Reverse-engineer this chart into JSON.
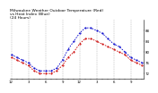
{
  "title": "Milwaukee Weather Outdoor Temperature (Red)\nvs Heat Index (Blue)\n(24 Hours)",
  "title_fontsize": 3.2,
  "background_color": "#ffffff",
  "grid_color": "#888888",
  "line_red_color": "#cc0000",
  "line_blue_color": "#0000cc",
  "hours": [
    0,
    1,
    2,
    3,
    4,
    5,
    6,
    7,
    8,
    9,
    10,
    11,
    12,
    13,
    14,
    15,
    16,
    17,
    18,
    19,
    20,
    21,
    22,
    23
  ],
  "temp_red": [
    78,
    77,
    76,
    75,
    73,
    72,
    72,
    72,
    73,
    75,
    78,
    80,
    83,
    85,
    85,
    84,
    83,
    82,
    81,
    80,
    79,
    77,
    76,
    75
  ],
  "temp_blue": [
    79,
    78,
    77,
    76,
    74,
    73,
    73,
    73,
    74,
    77,
    81,
    84,
    87,
    89,
    89,
    88,
    87,
    85,
    83,
    82,
    80,
    78,
    77,
    76
  ],
  "ylim": [
    70,
    92
  ],
  "ytick_values": [
    72,
    76,
    80,
    84,
    88
  ],
  "ytick_labels": [
    "72",
    "76",
    "80",
    "84",
    "88"
  ],
  "xticks": [
    0,
    3,
    6,
    9,
    12,
    15,
    18,
    21
  ],
  "xlabels": [
    "12",
    "3",
    "6",
    "9",
    "12",
    "3",
    "6",
    "9"
  ],
  "all_xticks": [
    0,
    1,
    2,
    3,
    4,
    5,
    6,
    7,
    8,
    9,
    10,
    11,
    12,
    13,
    14,
    15,
    16,
    17,
    18,
    19,
    20,
    21,
    22,
    23
  ],
  "tick_fontsize": 2.8,
  "grid_positions": [
    0,
    3,
    6,
    9,
    12,
    15,
    18,
    21
  ]
}
